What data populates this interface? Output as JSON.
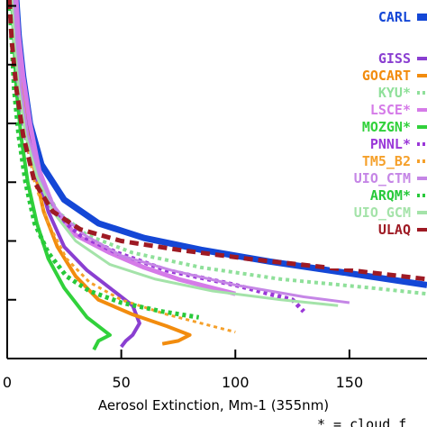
{
  "chart_data": {
    "type": "line",
    "title": "",
    "xlabel": "Aerosol Extinction, Mm-1 (355nm)",
    "ylabel": "",
    "xlim": [
      0,
      184
    ],
    "ylim": [
      0,
      6.1
    ],
    "x_ticks": [
      0,
      50,
      100,
      150
    ],
    "x_tick_labels": [
      "0",
      "50",
      "100",
      "150"
    ],
    "y_ticks": [
      0,
      1,
      2,
      3,
      4,
      5,
      6
    ],
    "grid": false,
    "legend_position": "right",
    "footnote": "* = cloud f",
    "series": [
      {
        "name": "CARL",
        "color": "#1447d6",
        "dash": "none",
        "width": 7,
        "x": [
          4,
          5,
          7,
          10,
          15,
          25,
          40,
          60,
          85,
          115,
          150,
          184
        ],
        "y": [
          6.1,
          5.5,
          4.8,
          4.0,
          3.3,
          2.7,
          2.3,
          2.05,
          1.85,
          1.65,
          1.45,
          1.25
        ]
      },
      {
        "name": "GISS",
        "color": "#8a3fd1",
        "dash": "none",
        "width": 4,
        "x": [
          3,
          4,
          6,
          9,
          13,
          18,
          25,
          35,
          45,
          55,
          58,
          55,
          52,
          50
        ],
        "y": [
          6.1,
          5.5,
          4.8,
          4.0,
          3.2,
          2.5,
          1.9,
          1.5,
          1.2,
          0.9,
          0.6,
          0.4,
          0.3,
          0.2
        ]
      },
      {
        "name": "GOCART",
        "color": "#f28c0e",
        "dash": "none",
        "width": 4,
        "x": [
          3,
          4,
          6,
          8,
          12,
          16,
          22,
          30,
          40,
          55,
          70,
          80,
          75,
          68
        ],
        "y": [
          6.1,
          5.5,
          4.8,
          4.0,
          3.2,
          2.5,
          1.9,
          1.4,
          1.0,
          0.75,
          0.55,
          0.4,
          0.3,
          0.25
        ]
      },
      {
        "name": "KYU*",
        "color": "#8fe09a",
        "dash": "dot",
        "width": 4,
        "x": [
          2,
          3,
          5,
          8,
          14,
          22,
          35,
          55,
          85,
          120,
          160,
          184
        ],
        "y": [
          6.1,
          5.4,
          4.6,
          3.8,
          3.1,
          2.5,
          2.1,
          1.8,
          1.55,
          1.35,
          1.2,
          1.1
        ]
      },
      {
        "name": "LSCE*",
        "color": "#d57be8",
        "dash": "none",
        "width": 5,
        "x": [
          4,
          5,
          7,
          10,
          14,
          20,
          30,
          45,
          60,
          75,
          90,
          100
        ],
        "y": [
          6.1,
          5.5,
          4.8,
          4.0,
          3.2,
          2.6,
          2.1,
          1.8,
          1.55,
          1.35,
          1.2,
          1.1
        ]
      },
      {
        "name": "MOZGN*",
        "color": "#31d13b",
        "dash": "none",
        "width": 4,
        "x": [
          2,
          3,
          4,
          6,
          9,
          13,
          18,
          25,
          35,
          45,
          40,
          38
        ],
        "y": [
          6.1,
          5.4,
          4.6,
          3.8,
          3.0,
          2.3,
          1.7,
          1.2,
          0.7,
          0.4,
          0.3,
          0.15
        ]
      },
      {
        "name": "PNNL*",
        "color": "#9a37d8",
        "dash": "dot",
        "width": 5,
        "x": [
          2,
          3,
          5,
          8,
          12,
          20,
          32,
          48,
          70,
          100,
          125,
          130
        ],
        "y": [
          6.1,
          5.4,
          4.6,
          3.8,
          3.1,
          2.5,
          2.1,
          1.8,
          1.5,
          1.25,
          1.0,
          0.8
        ]
      },
      {
        "name": "TM5_B2",
        "color": "#f5a02a",
        "dash": "dot",
        "width": 3,
        "x": [
          2,
          3,
          5,
          8,
          12,
          18,
          26,
          36,
          50,
          70,
          90,
          100
        ],
        "y": [
          6.1,
          5.4,
          4.6,
          3.8,
          3.0,
          2.3,
          1.7,
          1.3,
          1.0,
          0.75,
          0.55,
          0.45
        ]
      },
      {
        "name": "UIO_CTM",
        "color": "#c586e6",
        "dash": "none",
        "width": 3,
        "x": [
          3,
          4,
          6,
          9,
          14,
          22,
          34,
          50,
          72,
          100,
          130,
          150
        ],
        "y": [
          6.1,
          5.4,
          4.6,
          3.8,
          3.1,
          2.5,
          2.1,
          1.75,
          1.5,
          1.25,
          1.05,
          0.95
        ]
      },
      {
        "name": "ARQM*",
        "color": "#27c93a",
        "dash": "dot",
        "width": 5,
        "x": [
          1,
          2,
          3,
          5,
          8,
          12,
          18,
          26,
          36,
          50,
          68,
          84
        ],
        "y": [
          6.1,
          5.4,
          4.6,
          3.8,
          3.0,
          2.3,
          1.8,
          1.4,
          1.15,
          0.95,
          0.8,
          0.7
        ]
      },
      {
        "name": "UIO_GCM",
        "color": "#a4e3a9",
        "dash": "none",
        "width": 3,
        "x": [
          2,
          3,
          5,
          8,
          13,
          20,
          30,
          45,
          65,
          90,
          120,
          145
        ],
        "y": [
          6.1,
          5.4,
          4.6,
          3.8,
          3.1,
          2.5,
          2.0,
          1.6,
          1.35,
          1.15,
          1.0,
          0.9
        ]
      },
      {
        "name": "ULAQ",
        "color": "#9e1a24",
        "dash": "dash",
        "width": 5,
        "x": [
          1,
          2,
          4,
          7,
          12,
          20,
          32,
          50,
          75,
          105,
          140,
          184
        ],
        "y": [
          6.1,
          5.4,
          4.6,
          3.8,
          3.0,
          2.5,
          2.2,
          2.0,
          1.85,
          1.7,
          1.55,
          1.35
        ]
      }
    ]
  }
}
